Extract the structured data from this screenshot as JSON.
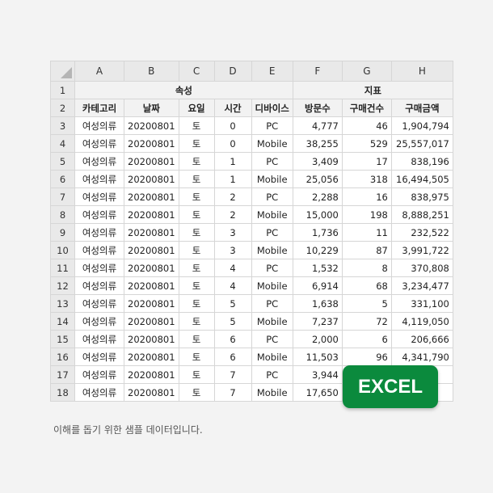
{
  "columns": [
    "A",
    "B",
    "C",
    "D",
    "E",
    "F",
    "G",
    "H"
  ],
  "groups": {
    "attributes": "속성",
    "metrics": "지표"
  },
  "headers": [
    "카테고리",
    "날짜",
    "요일",
    "시간",
    "디바이스",
    "방문수",
    "구매건수",
    "구매금액"
  ],
  "rows": [
    [
      "여성의류",
      "20200801",
      "토",
      "0",
      "PC",
      "4,777",
      "46",
      "1,904,794"
    ],
    [
      "여성의류",
      "20200801",
      "토",
      "0",
      "Mobile",
      "38,255",
      "529",
      "25,557,017"
    ],
    [
      "여성의류",
      "20200801",
      "토",
      "1",
      "PC",
      "3,409",
      "17",
      "838,196"
    ],
    [
      "여성의류",
      "20200801",
      "토",
      "1",
      "Mobile",
      "25,056",
      "318",
      "16,494,505"
    ],
    [
      "여성의류",
      "20200801",
      "토",
      "2",
      "PC",
      "2,288",
      "16",
      "838,975"
    ],
    [
      "여성의류",
      "20200801",
      "토",
      "2",
      "Mobile",
      "15,000",
      "198",
      "8,888,251"
    ],
    [
      "여성의류",
      "20200801",
      "토",
      "3",
      "PC",
      "1,736",
      "11",
      "232,522"
    ],
    [
      "여성의류",
      "20200801",
      "토",
      "3",
      "Mobile",
      "10,229",
      "87",
      "3,991,722"
    ],
    [
      "여성의류",
      "20200801",
      "토",
      "4",
      "PC",
      "1,532",
      "8",
      "370,808"
    ],
    [
      "여성의류",
      "20200801",
      "토",
      "4",
      "Mobile",
      "6,914",
      "68",
      "3,234,477"
    ],
    [
      "여성의류",
      "20200801",
      "토",
      "5",
      "PC",
      "1,638",
      "5",
      "331,100"
    ],
    [
      "여성의류",
      "20200801",
      "토",
      "5",
      "Mobile",
      "7,237",
      "72",
      "4,119,050"
    ],
    [
      "여성의류",
      "20200801",
      "토",
      "6",
      "PC",
      "2,000",
      "6",
      "206,666"
    ],
    [
      "여성의류",
      "20200801",
      "토",
      "6",
      "Mobile",
      "11,503",
      "96",
      "4,341,790"
    ],
    [
      "여성의류",
      "20200801",
      "토",
      "7",
      "PC",
      "3,944",
      "",
      ""
    ],
    [
      "여성의류",
      "20200801",
      "토",
      "7",
      "Mobile",
      "17,650",
      "",
      ""
    ]
  ],
  "badge": {
    "label": "EXCEL",
    "color": "#0b8a3d"
  },
  "caption": "이해를 돕기 위한 샘플 데이터입니다."
}
